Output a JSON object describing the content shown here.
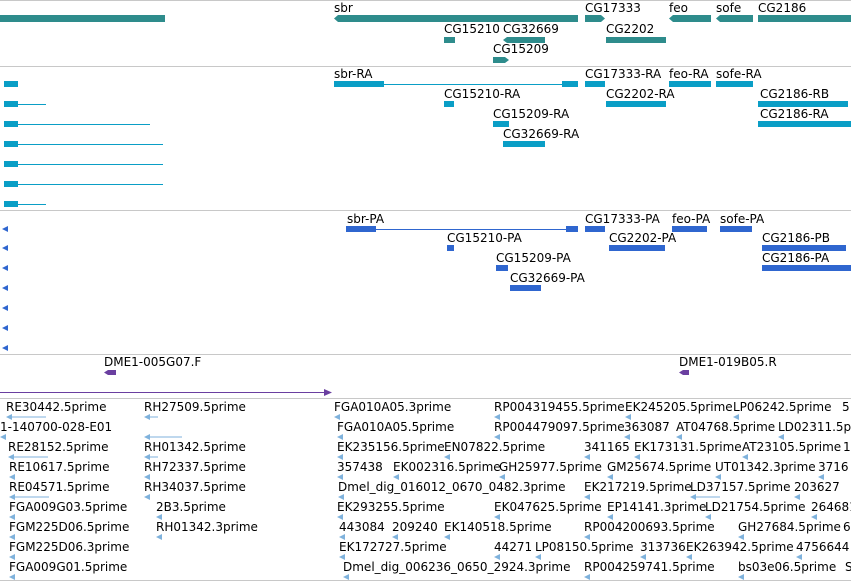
{
  "colors": {
    "gene": "#2e8c8c",
    "transcript": "#0a9ec6",
    "protein": "#2f66cf",
    "clone": "#6a3fa0",
    "est": "#7fb2dc"
  },
  "gene_track": {
    "labels": [
      "sbr",
      "CG17333",
      "feo",
      "sofe",
      "CG2186",
      "CG15210",
      "CG32669",
      "CG2202",
      "CG15209"
    ]
  },
  "transcript_track": {
    "labels": [
      "sbr-RA",
      "CG17333-RA",
      "feo-RA",
      "sofe-RA",
      "CG15210-RA",
      "CG2202-RA",
      "CG2186-RB",
      "CG15209-RA",
      "CG2186-RA",
      "CG32669-RA"
    ]
  },
  "protein_track": {
    "labels": [
      "sbr-PA",
      "CG17333-PA",
      "feo-PA",
      "sofe-PA",
      "CG15210-PA",
      "CG2202-PA",
      "CG2186-PB",
      "CG15209-PA",
      "CG2186-PA",
      "CG32669-PA"
    ]
  },
  "clone_track": {
    "labels": [
      "DME1-005G07.F",
      "DME1-019B05.R"
    ]
  },
  "est_track": {
    "labels": [
      "RE30442.5prime",
      "RH27509.5prime",
      "FGA010A05.3prime",
      "RP004319455.5prime",
      "EK245205.5prime",
      "LP06242.5prime",
      "5",
      "1-140700-028-E01",
      "FGA010A05.5prime",
      "RP004479097.5prime",
      "363087",
      "AT04768.5prime",
      "LD02311.5p",
      "RE28152.5prime",
      "RH01342.5prime",
      "EK235156.5prime",
      "EN07822.5prime",
      "341165",
      "EK173131.5prime",
      "AT23105.5prime",
      "1",
      "RE10617.5prime",
      "RH72337.5prime",
      "357438",
      "EK002316.5prime",
      "GH25977.5prime",
      "GM25674.5prime",
      "UT01342.3prime",
      "3716",
      "RE04571.5prime",
      "RH34037.5prime",
      "Dmel_dig_016012_0670_0482.3prime",
      "EK217219.5prime",
      "LD37157.5prime",
      "203627",
      "FGA009G03.5prime",
      "2B3.5prime",
      "EK293255.5prime",
      "EK047625.5prime",
      "EP14141.3prime",
      "LD21754.5prime",
      "264681",
      "FGM225D06.5prime",
      "RH01342.3prime",
      "443084",
      "209240",
      "EK140518.5prime",
      "RP004200693.5prime",
      "GH27684.5prime",
      "6",
      "FGM225D06.3prime",
      "EK172727.5prime",
      "44271",
      "LP08150.5prime",
      "313736",
      "EK263942.5prime",
      "4756644",
      "FGA009G01.5prime",
      "Dmel_dig_006236_0650_2924.3prime",
      "RP004259741.5prime",
      "bs03e06.5prime",
      "S"
    ]
  }
}
